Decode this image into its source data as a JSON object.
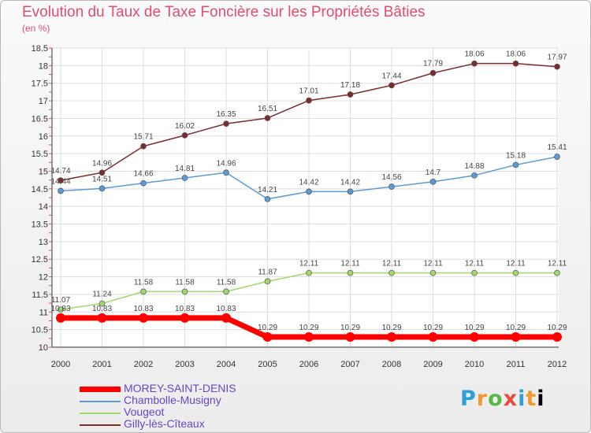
{
  "title": "Evolution du Taux de Taxe Foncière sur les Propriétés Bâties",
  "subtitle": "(en %)",
  "logo_text": "Proxiti",
  "chart_data": {
    "type": "line",
    "x": [
      "2000",
      "2001",
      "2002",
      "2003",
      "2004",
      "2005",
      "2006",
      "2007",
      "2008",
      "2009",
      "2010",
      "2011",
      "2012"
    ],
    "ylim": [
      10,
      18.5
    ],
    "yticks": [
      "10",
      "10.5",
      "11",
      "11.5",
      "12",
      "12.5",
      "13",
      "13.5",
      "14",
      "14.5",
      "15",
      "15.5",
      "16",
      "16.5",
      "17",
      "17.5",
      "18",
      "18.5"
    ],
    "grid": true,
    "legend": "bottom-left",
    "series": [
      {
        "name": "MOREY-SAINT-DENIS",
        "color": "#ff0000",
        "values": [
          10.83,
          10.83,
          10.83,
          10.83,
          10.83,
          10.29,
          10.29,
          10.29,
          10.29,
          10.29,
          10.29,
          10.29,
          10.29
        ],
        "labels": [
          "10.83",
          "10.83",
          "10.83",
          "10.83",
          "10.83",
          "10.29",
          "10.29",
          "10.29",
          "10.29",
          "10.29",
          "10.29",
          "10.29",
          "10.29"
        ]
      },
      {
        "name": "Chambolle-Musigny",
        "color": "#5b9bd5",
        "values": [
          14.44,
          14.51,
          14.66,
          14.81,
          14.96,
          14.21,
          14.42,
          14.42,
          14.56,
          14.7,
          14.88,
          15.18,
          15.41
        ],
        "labels": [
          "14.44",
          "14.51",
          "14.66",
          "14.81",
          "14.96",
          "14.21",
          "14.42",
          "14.42",
          "14.56",
          "14.7",
          "14.88",
          "15.18",
          "15.41"
        ]
      },
      {
        "name": "Vougeot",
        "color": "#9fd86b",
        "values": [
          11.07,
          11.24,
          11.58,
          11.58,
          11.58,
          11.87,
          12.11,
          12.11,
          12.11,
          12.11,
          12.11,
          12.11,
          12.11
        ],
        "labels": [
          "11.07",
          "11.24",
          "11.58",
          "11.58",
          "11.58",
          "11.87",
          "12.11",
          "12.11",
          "12.11",
          "12.11",
          "12.11",
          "12.11",
          "12.11"
        ]
      },
      {
        "name": "Gilly-lès-Cîteaux",
        "color": "#7b2c2c",
        "values": [
          14.74,
          14.96,
          15.71,
          16.02,
          16.35,
          16.51,
          17.01,
          17.18,
          17.44,
          17.79,
          18.06,
          18.06,
          17.97
        ],
        "labels": [
          "14.74",
          "14.96",
          "15.71",
          "16.02",
          "16.35",
          "16.51",
          "17.01",
          "17.18",
          "17.44",
          "17.79",
          "18.06",
          "18.06",
          "17.97"
        ]
      }
    ]
  }
}
